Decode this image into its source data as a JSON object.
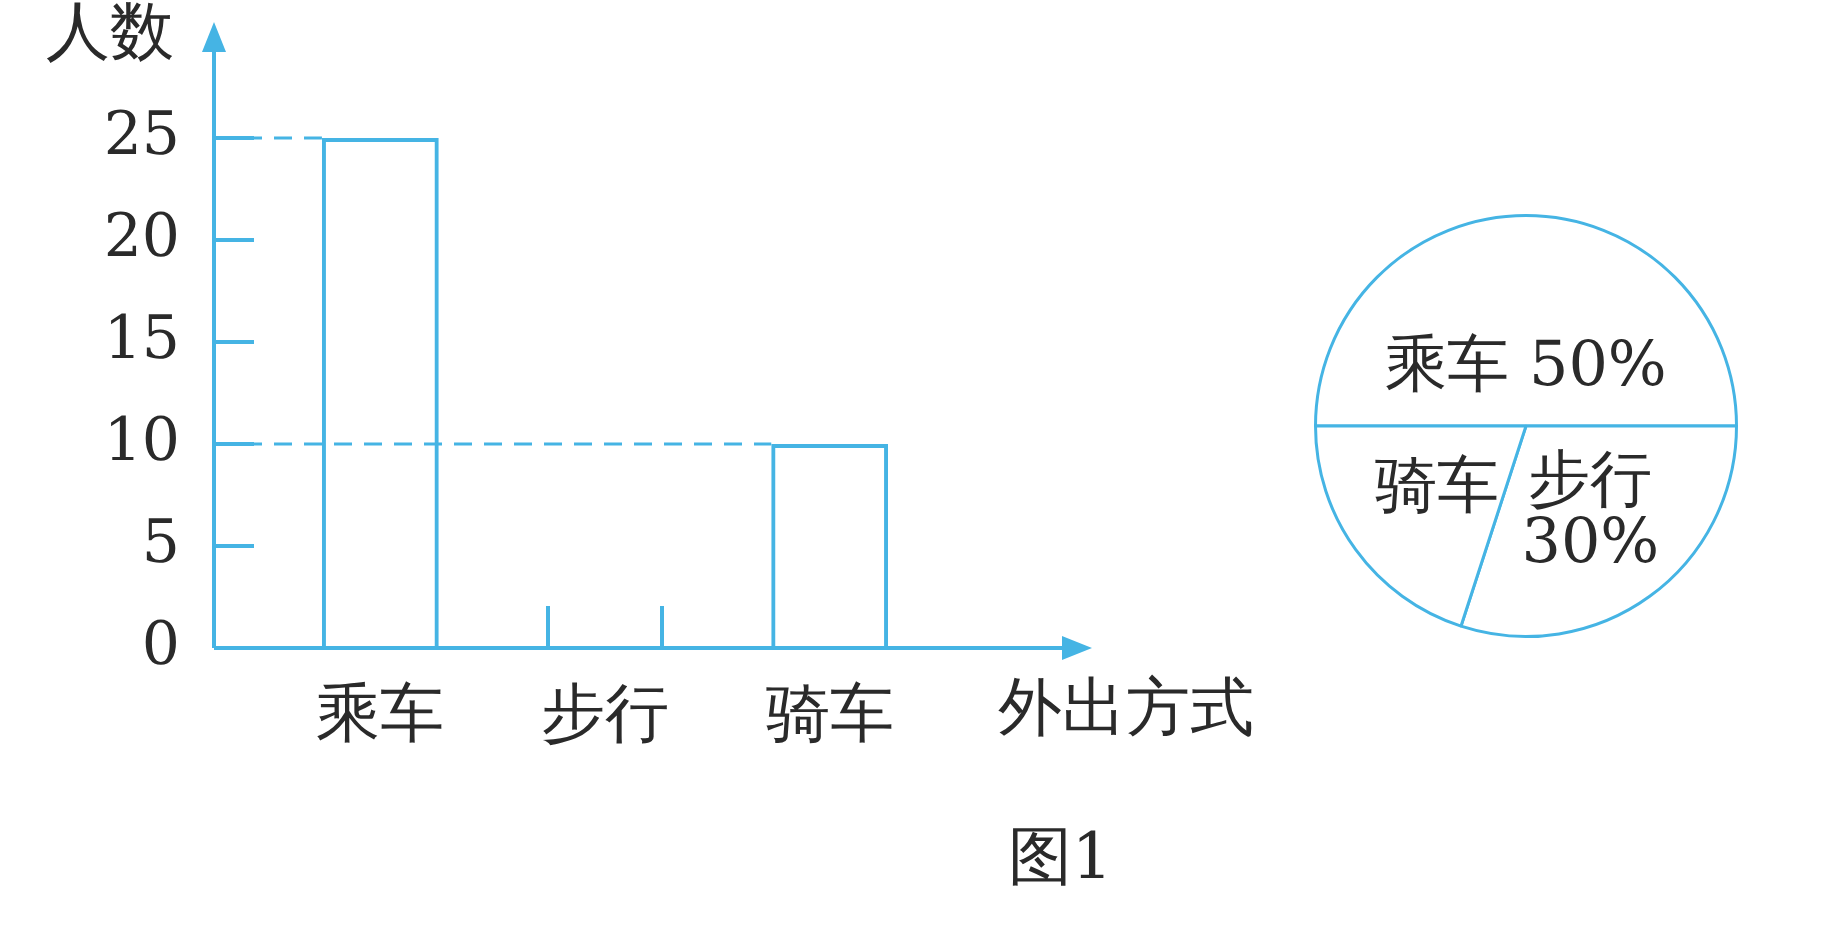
{
  "chart_data": [
    {
      "type": "bar",
      "categories": [
        "乘车",
        "步行",
        "骑车"
      ],
      "values": [
        25,
        null,
        10
      ],
      "color": "#45b4e4",
      "ylim": [
        0,
        30
      ],
      "yticks": [
        0,
        5,
        10,
        15,
        20,
        25
      ],
      "xlabel": "外出方式",
      "ylabel": "人数",
      "ref_lines": [
        {
          "axis": "y",
          "value": 25,
          "color": "#45b4e4",
          "line_style": "dashed"
        },
        {
          "axis": "y",
          "value": 10,
          "color": "#45b4e4",
          "line_style": "dashed"
        }
      ],
      "annotations": [
        "图1"
      ]
    },
    {
      "type": "pie",
      "categories": [
        "乘车",
        "步行",
        "骑车"
      ],
      "values": [
        50,
        30,
        20
      ],
      "colors": [
        "#ffffff",
        "#ffffff",
        "#ffffff"
      ],
      "value_labels": [
        "50%",
        "30%",
        null
      ]
    }
  ]
}
